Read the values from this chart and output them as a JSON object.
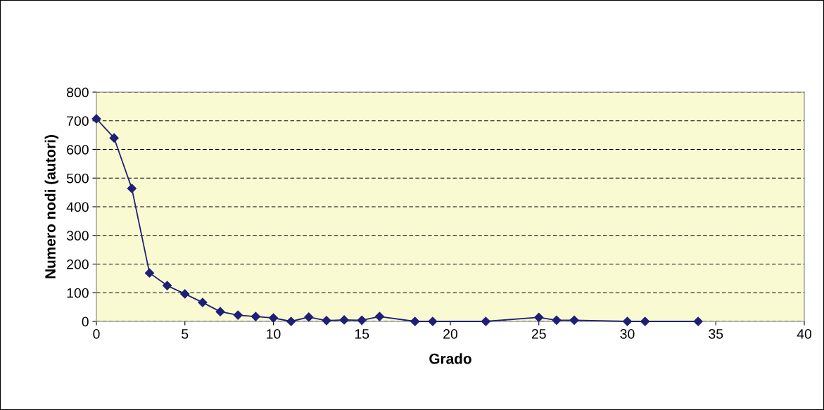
{
  "chart_data": {
    "type": "line",
    "xlabel": "Grado",
    "ylabel": "Numero nodi (autori)",
    "x": [
      0,
      1,
      2,
      3,
      4,
      5,
      6,
      7,
      8,
      9,
      10,
      11,
      12,
      13,
      14,
      15,
      16,
      18,
      19,
      22,
      25,
      26,
      27,
      30,
      31,
      34
    ],
    "series": [
      {
        "color": "#1f1f78",
        "values": [
          707,
          640,
          464,
          169,
          125,
          96,
          66,
          34,
          22,
          17,
          12,
          0,
          15,
          3,
          5,
          4,
          17,
          0,
          0,
          0,
          14,
          4,
          4,
          0,
          0,
          0
        ]
      }
    ],
    "xlim": [
      0,
      40
    ],
    "xticks": [
      0,
      5,
      10,
      15,
      20,
      25,
      30,
      35,
      40
    ],
    "ylim": [
      0,
      800
    ],
    "yticks": [
      0,
      100,
      200,
      300,
      400,
      500,
      600,
      700,
      800
    ],
    "grid": "y",
    "marker": "diamond",
    "line_style": "solid",
    "legend": false
  }
}
